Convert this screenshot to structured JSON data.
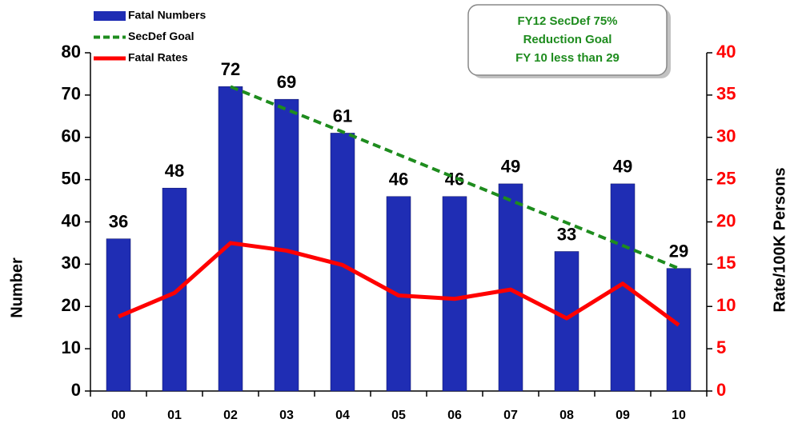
{
  "chart_data": {
    "type": "bar",
    "categories": [
      "00",
      "01",
      "02",
      "03",
      "04",
      "05",
      "06",
      "07",
      "08",
      "09",
      "10"
    ],
    "series": [
      {
        "name": "Fatal Numbers",
        "type": "bar",
        "color": "#1f2db4",
        "values": [
          36,
          48,
          72,
          69,
          61,
          46,
          46,
          49,
          33,
          49,
          29
        ]
      },
      {
        "name": "SecDef Goal",
        "type": "line",
        "dashed": true,
        "color": "#1e8c1e",
        "values": [
          null,
          null,
          72,
          66.6,
          61.3,
          55.9,
          50.5,
          45.1,
          39.8,
          34.4,
          29
        ]
      },
      {
        "name": "Fatal Rates",
        "type": "line",
        "axis": "y2",
        "color": "#ff0000",
        "values": [
          8.8,
          11.6,
          17.5,
          16.6,
          14.9,
          11.3,
          10.9,
          12.0,
          8.6,
          12.7,
          7.8
        ]
      }
    ],
    "ylabel": "Number",
    "y2label": "Rate/100K Persons",
    "ylim": [
      0,
      80
    ],
    "yticks": [
      0,
      10,
      20,
      30,
      40,
      50,
      60,
      70,
      80
    ],
    "y2lim": [
      0,
      40
    ],
    "y2ticks": [
      0,
      5,
      10,
      15,
      20,
      25,
      30,
      35,
      40
    ],
    "y2color": "#ff0000",
    "annotation": [
      "FY12 SecDef 75%",
      "Reduction Goal",
      "FY 10 less than 29"
    ],
    "legend": "top-left"
  }
}
